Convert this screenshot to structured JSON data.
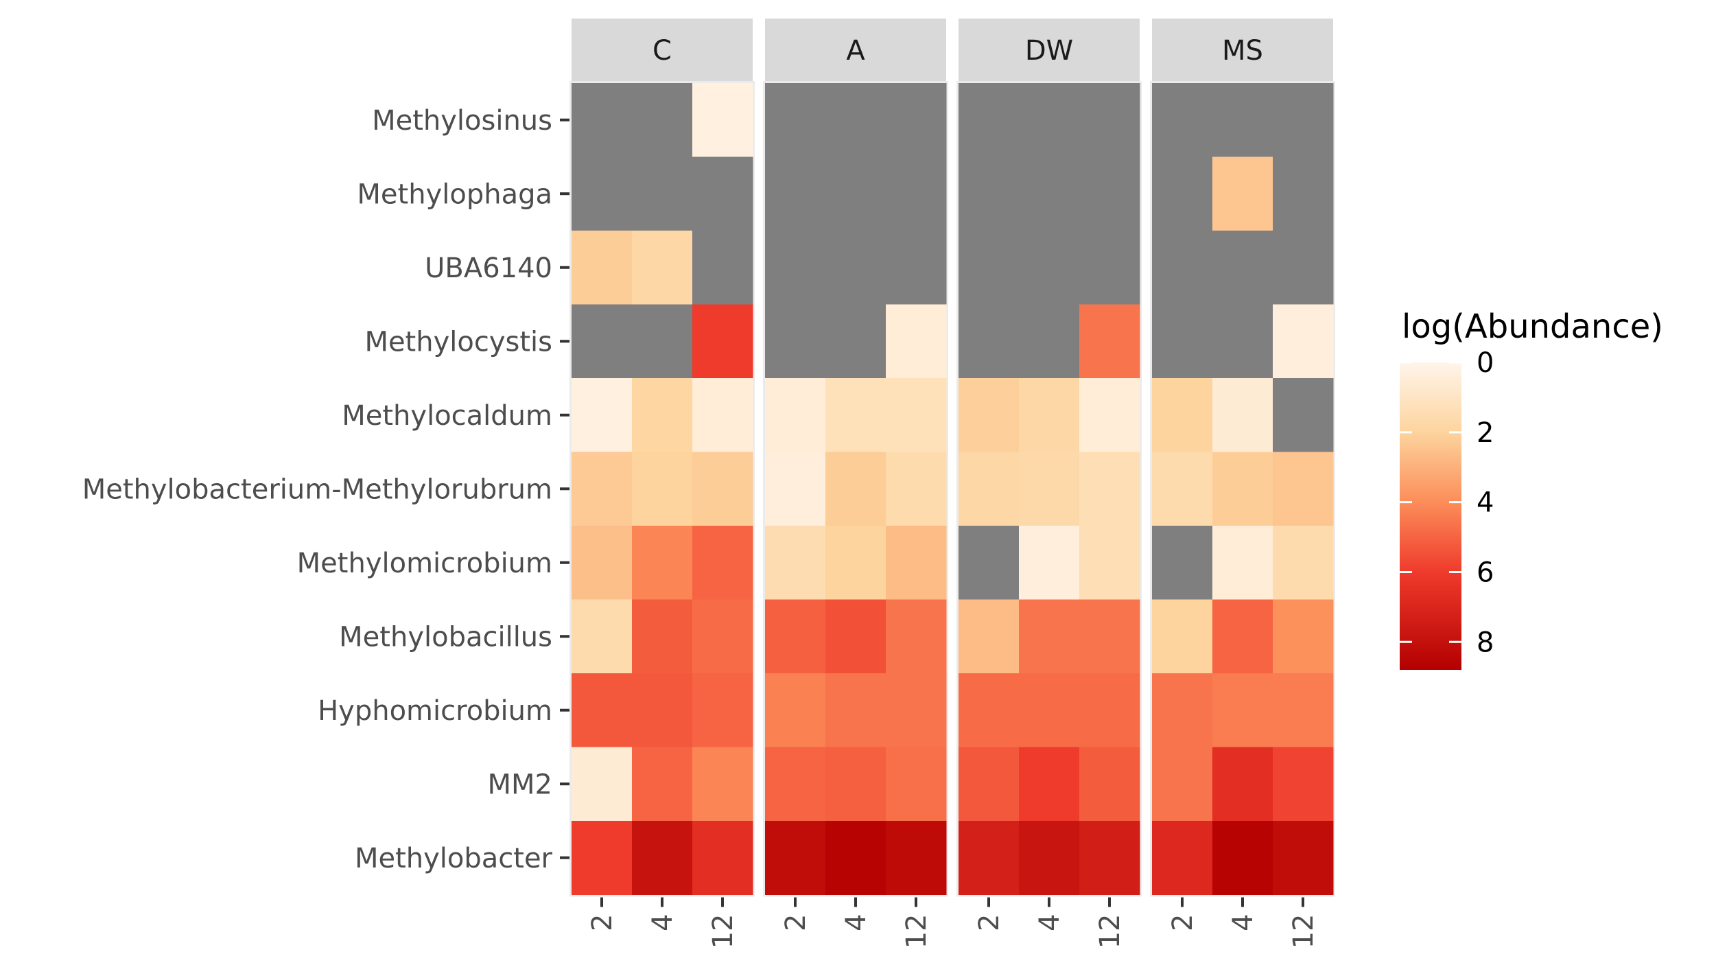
{
  "chart_data": {
    "type": "heatmap",
    "facets": [
      "C",
      "A",
      "DW",
      "MS"
    ],
    "x_categories": [
      "2",
      "4",
      "12"
    ],
    "rows": [
      "Methylosinus",
      "Methylophaga",
      "UBA6140",
      "Methylocystis",
      "Methylocaldum",
      "Methylobacterium-Methylorubrum",
      "Methylomicrobium",
      "Methylobacillus",
      "Hyphomicrobium",
      "MM2",
      "Methylobacter"
    ],
    "values": {
      "C": [
        [
          null,
          null,
          0.3
        ],
        [
          null,
          null,
          null
        ],
        [
          2.2,
          1.8,
          null
        ],
        [
          null,
          null,
          6.0
        ],
        [
          0.3,
          1.9,
          0.5
        ],
        [
          2.3,
          2.0,
          2.2
        ],
        [
          2.6,
          4.2,
          5.0
        ],
        [
          1.6,
          5.2,
          4.8
        ],
        [
          5.3,
          5.3,
          5.0
        ],
        [
          0.6,
          5.0,
          4.2
        ],
        [
          6.0,
          7.9,
          6.6
        ]
      ],
      "A": [
        [
          null,
          null,
          null
        ],
        [
          null,
          null,
          null
        ],
        [
          null,
          null,
          null
        ],
        [
          null,
          null,
          0.5
        ],
        [
          0.5,
          1.3,
          1.3
        ],
        [
          0.4,
          2.2,
          1.6
        ],
        [
          1.5,
          2.0,
          2.7
        ],
        [
          5.1,
          5.5,
          4.6
        ],
        [
          4.3,
          4.6,
          4.6
        ],
        [
          5.0,
          5.1,
          4.7
        ],
        [
          8.2,
          8.6,
          8.3
        ]
      ],
      "DW": [
        [
          null,
          null,
          null
        ],
        [
          null,
          null,
          null
        ],
        [
          null,
          null,
          null
        ],
        [
          null,
          null,
          4.6
        ],
        [
          2.1,
          1.8,
          0.5
        ],
        [
          1.8,
          1.7,
          1.4
        ],
        [
          null,
          0.4,
          1.4
        ],
        [
          2.7,
          4.6,
          4.6
        ],
        [
          4.8,
          4.8,
          4.8
        ],
        [
          5.3,
          6.0,
          5.2
        ],
        [
          7.3,
          7.8,
          7.4
        ]
      ],
      "MS": [
        [
          null,
          null,
          null
        ],
        [
          null,
          2.4,
          null
        ],
        [
          null,
          null,
          null
        ],
        [
          null,
          null,
          0.4
        ],
        [
          2.0,
          0.6,
          null
        ],
        [
          1.6,
          2.2,
          2.4
        ],
        [
          null,
          0.5,
          1.6
        ],
        [
          2.0,
          5.0,
          3.9
        ],
        [
          4.6,
          4.4,
          4.4
        ],
        [
          4.6,
          6.6,
          5.8
        ],
        [
          6.9,
          8.6,
          8.2
        ]
      ]
    },
    "missing_color": "#7f7f7f",
    "legend": {
      "title": "log(Abundance)",
      "ticks": [
        "0",
        "2",
        "4",
        "6",
        "8"
      ],
      "range": [
        0,
        8.8
      ]
    },
    "colors": {
      "low": "#fff5eb",
      "mid1": "#fdd49e",
      "mid2": "#fc8d59",
      "mid3": "#ef3b2c",
      "high": "#b30000"
    }
  }
}
